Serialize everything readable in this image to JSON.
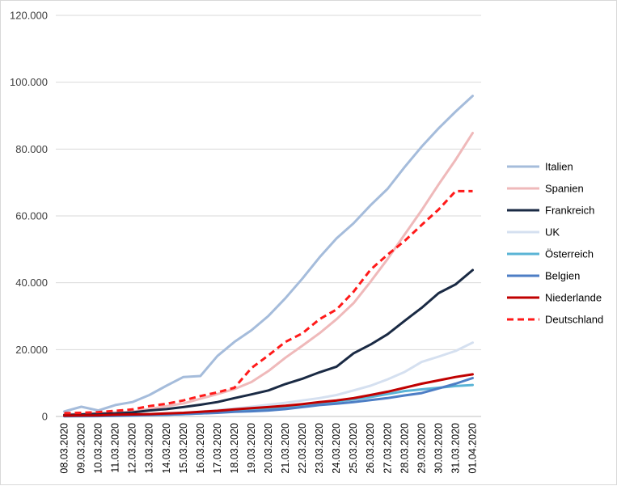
{
  "chart_data": {
    "type": "line",
    "title": "",
    "xlabel": "",
    "ylabel": "",
    "ylim": [
      0,
      120000
    ],
    "y_ticks": [
      0,
      20000,
      40000,
      60000,
      80000,
      100000,
      120000
    ],
    "y_tick_labels": [
      "0",
      "20.000",
      "40.000",
      "60.000",
      "80.000",
      "100.000",
      "120.000"
    ],
    "grid": "horizontal",
    "legend_position": "right",
    "categories": [
      "08.03.2020",
      "09.03.2020",
      "10.03.2020",
      "11.03.2020",
      "12.03.2020",
      "13.03.2020",
      "14.03.2020",
      "15.03.2020",
      "16.03.2020",
      "17.03.2020",
      "18.03.2020",
      "19.03.2020",
      "20.03.2020",
      "21.03.2020",
      "22.03.2020",
      "23.03.2020",
      "24.03.2020",
      "25.03.2020",
      "26.03.2020",
      "27.03.2020",
      "28.03.2020",
      "29.03.2020",
      "30.03.2020",
      "31.03.2020",
      "01.04.2020"
    ],
    "series": [
      {
        "name": "Italien",
        "color": "#a5bcdb",
        "dashed": false,
        "values": [
          1500,
          2900,
          1800,
          3400,
          4300,
          6400,
          9200,
          11800,
          12100,
          18100,
          22300,
          25800,
          30100,
          35400,
          41300,
          47600,
          53300,
          57800,
          63200,
          68100,
          74600,
          80700,
          86200,
          91200,
          95900
        ]
      },
      {
        "name": "Spanien",
        "color": "#efb9ba",
        "dashed": false,
        "values": [
          600,
          700,
          1100,
          1200,
          1400,
          2200,
          3100,
          3900,
          5300,
          6700,
          8200,
          10300,
          13600,
          17600,
          21200,
          24900,
          29100,
          33900,
          40300,
          47100,
          54400,
          61700,
          69400,
          76800,
          84800
        ]
      },
      {
        "name": "Frankreich",
        "color": "#1a2a44",
        "dashed": false,
        "values": [
          400,
          600,
          800,
          900,
          1200,
          1800,
          2200,
          2800,
          3500,
          4300,
          5500,
          6600,
          7800,
          9700,
          11300,
          13200,
          14900,
          18900,
          21500,
          24600,
          28600,
          32500,
          36900,
          39500,
          43800
        ]
      },
      {
        "name": "UK",
        "color": "#d5e0f0",
        "dashed": false,
        "values": [
          100,
          200,
          200,
          300,
          400,
          600,
          800,
          1100,
          1400,
          1900,
          2400,
          2900,
          3500,
          4100,
          4800,
          5500,
          6400,
          7800,
          9200,
          11100,
          13300,
          16300,
          17900,
          19600,
          22100
        ]
      },
      {
        "name": "Österreich",
        "color": "#5ab4d6",
        "dashed": false,
        "values": [
          50,
          70,
          100,
          150,
          250,
          400,
          500,
          700,
          900,
          1200,
          1600,
          2000,
          2300,
          2800,
          3200,
          3900,
          4500,
          5100,
          5800,
          6700,
          7600,
          8100,
          8600,
          9100,
          9400
        ]
      },
      {
        "name": "Belgien",
        "color": "#4d7ec5",
        "dashed": false,
        "values": [
          100,
          150,
          200,
          250,
          300,
          400,
          550,
          700,
          900,
          1100,
          1400,
          1550,
          1800,
          2200,
          2800,
          3400,
          3800,
          4300,
          4900,
          5500,
          6300,
          7000,
          8400,
          9800,
          11500
        ]
      },
      {
        "name": "Niederlande",
        "color": "#c00000",
        "dashed": false,
        "values": [
          250,
          300,
          350,
          500,
          600,
          700,
          900,
          1100,
          1400,
          1700,
          2100,
          2500,
          2800,
          3200,
          3700,
          4300,
          4800,
          5500,
          6400,
          7400,
          8600,
          9800,
          10800,
          11800,
          12600
        ]
      },
      {
        "name": "Deutschland",
        "color": "#ff1a1a",
        "dashed": true,
        "values": [
          1000,
          1100,
          1300,
          1700,
          2100,
          3100,
          3800,
          4800,
          6100,
          7200,
          8600,
          14500,
          18300,
          22300,
          24900,
          29100,
          32000,
          37300,
          43900,
          48400,
          52500,
          57300,
          61900,
          67400,
          67400
        ]
      }
    ]
  }
}
